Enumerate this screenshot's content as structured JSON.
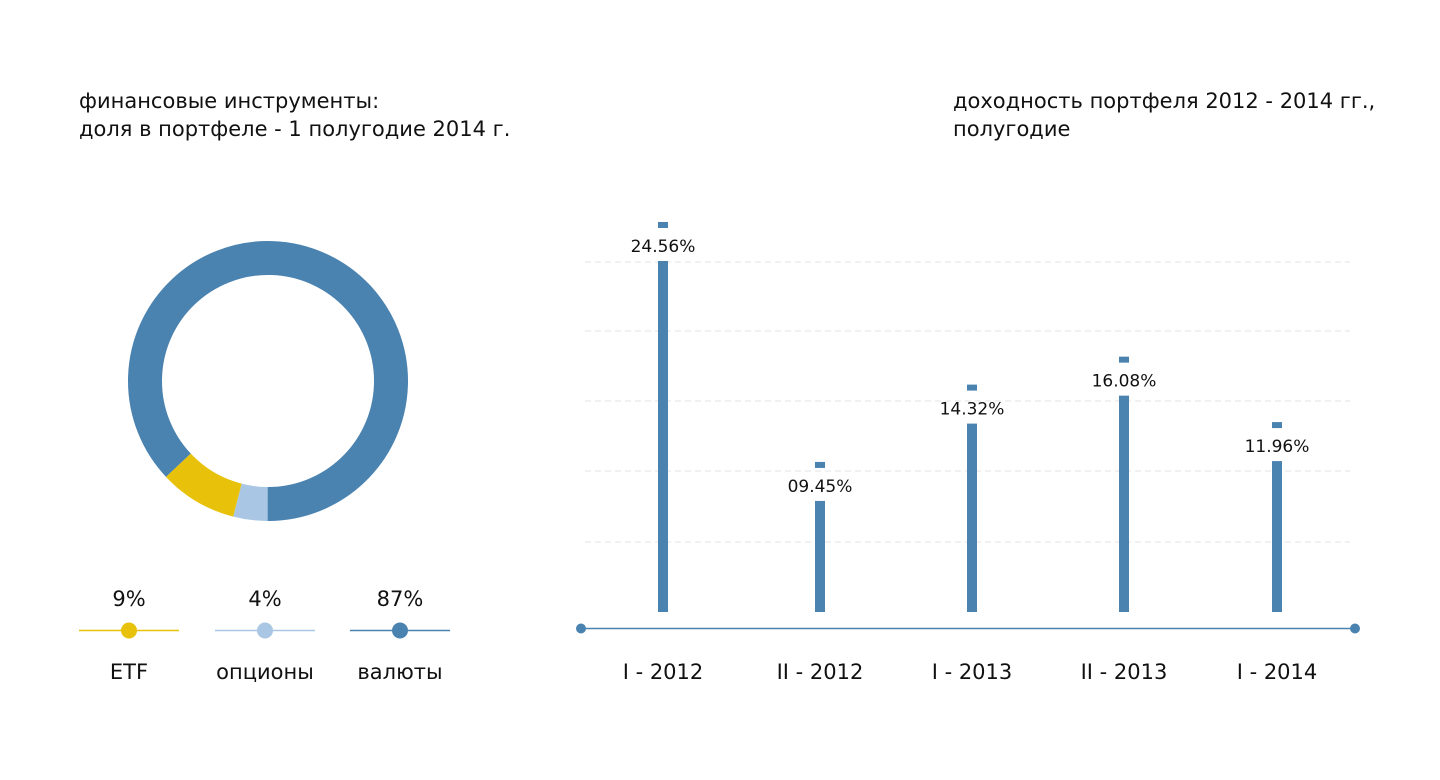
{
  "donut": {
    "title_line1": "финансовые инструменты:",
    "title_line2": "доля в портфеле - 1 полугодие 2014 г."
  },
  "bars": {
    "title_line1": "доходность портфеля 2012 - 2014 гг.,",
    "title_line2": "полугодие"
  },
  "colors": {
    "etf": "#e8c20a",
    "options": "#a9c6e4",
    "currencies": "#4a82b0",
    "bar": "#4a82b0",
    "axis": "#4a82b0",
    "grid": "#e3e3e3"
  },
  "chart_data": [
    {
      "type": "pie",
      "title": "финансовые инструменты: доля в портфеле - 1 полугодие 2014 г.",
      "categories": [
        "ETF",
        "опционы",
        "валюты"
      ],
      "values": [
        9,
        4,
        87
      ],
      "labels": [
        "9%",
        "4%",
        "87%"
      ],
      "colors": [
        "#e8c20a",
        "#a9c6e4",
        "#4a82b0"
      ],
      "legend_position": "bottom"
    },
    {
      "type": "bar",
      "title": "доходность портфеля 2012 - 2014 гг., полугодие",
      "categories": [
        "I - 2012",
        "II - 2012",
        "I - 2013",
        "II - 2013",
        "I - 2014"
      ],
      "values": [
        24.56,
        9.45,
        14.32,
        16.08,
        11.96
      ],
      "labels": [
        "24.56%",
        "09.45%",
        "14.32%",
        "16.08%",
        "11.96%"
      ],
      "ylim": [
        0,
        25
      ],
      "grid": true
    }
  ]
}
